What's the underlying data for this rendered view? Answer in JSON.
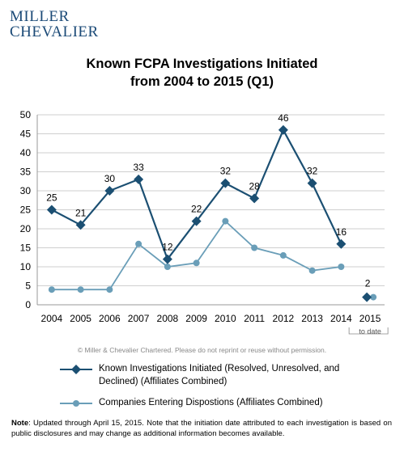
{
  "logo": {
    "line1": "MILLER",
    "line2": "CHEVALIER"
  },
  "colors": {
    "series1": "#1b4f72",
    "series2": "#6a9eb8",
    "axis": "#999999",
    "grid": "#bfbfbf"
  },
  "chart_data": {
    "type": "line",
    "title_line1": "Known FCPA Investigations Initiated",
    "title_line2": "from 2004 to 2015 (Q1)",
    "x": [
      "2004",
      "2005",
      "2006",
      "2007",
      "2008",
      "2009",
      "2010",
      "2011",
      "2012",
      "2013",
      "2014",
      "2015"
    ],
    "ylim": [
      0,
      50
    ],
    "yticks": [
      0,
      5,
      10,
      15,
      20,
      25,
      30,
      35,
      40,
      45,
      50
    ],
    "grid": true,
    "x_annotation": "to date",
    "series": [
      {
        "name": "Known Investigations Initiated (Resolved, Unresolved, and Declined) (Affiliates Combined)",
        "line1": "Known Investigations Initiated (Resolved, Unresolved, and",
        "line2": "Declined) (Affiliates Combined)",
        "marker": "diamond",
        "values": [
          25,
          21,
          30,
          33,
          12,
          22,
          32,
          28,
          46,
          32,
          16,
          2
        ],
        "labels": [
          "25",
          "21",
          "30",
          "33",
          "12",
          "22",
          "32",
          "28",
          "46",
          "32",
          "16",
          "2"
        ]
      },
      {
        "name": "Companies Entering Dispostions (Affiliates Combined)",
        "line1": "Companies Entering Dispostions (Affiliates Combined)",
        "marker": "circle",
        "values": [
          4,
          4,
          4,
          16,
          10,
          11,
          22,
          15,
          13,
          9,
          10,
          2
        ]
      }
    ]
  },
  "copyright": "© Miller & Chevalier Chartered. Please do not reprint or reuse without permission.",
  "note": {
    "label": "Note",
    "text": ": Updated through April 15, 2015. Note that the initiation date attributed to each investigation is based on public disclosures and may change as additional information becomes available."
  }
}
